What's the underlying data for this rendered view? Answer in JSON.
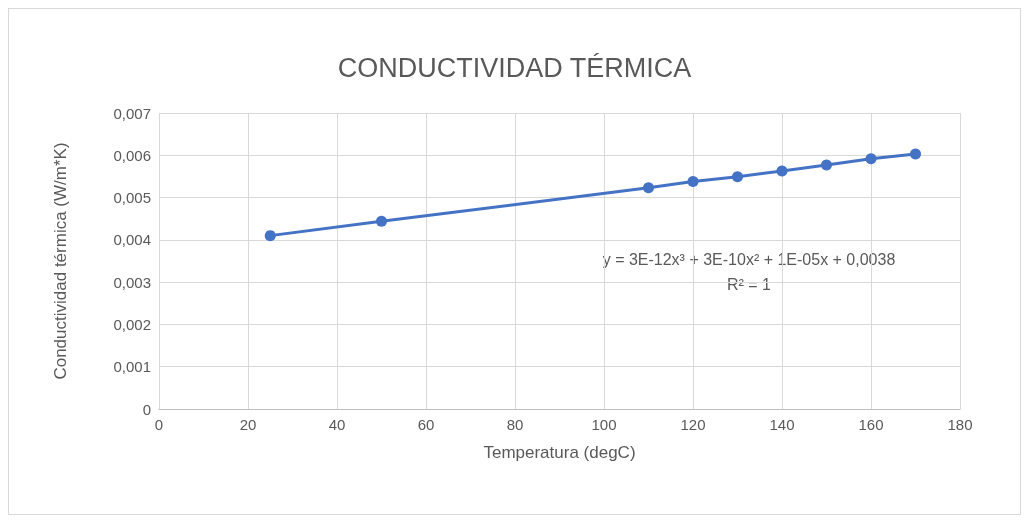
{
  "chart_data": {
    "type": "line",
    "title": "CONDUCTIVIDAD TÉRMICA",
    "xlabel": "Temperatura (degC)",
    "ylabel": "Conductividad térmica (W/m*K)",
    "x": [
      25,
      50,
      110,
      120,
      130,
      140,
      150,
      160,
      170
    ],
    "series": [
      {
        "color": "#4472c4",
        "values": [
          0.0041,
          0.00444,
          0.00523,
          0.00538,
          0.00549,
          0.00563,
          0.00577,
          0.00592,
          0.00603
        ]
      }
    ],
    "xlim": [
      0,
      180
    ],
    "xticks": [
      0,
      20,
      40,
      60,
      80,
      100,
      120,
      140,
      160,
      180
    ],
    "ylim": [
      0,
      0.007
    ],
    "yticks": [
      0,
      {
        "value": 0.001,
        "label": "0,001"
      },
      {
        "value": 0.002,
        "label": "0,002"
      },
      {
        "value": 0.003,
        "label": "0,003"
      },
      {
        "value": 0.004,
        "label": "0,004"
      },
      {
        "value": 0.005,
        "label": "0,005"
      },
      {
        "value": 0.006,
        "label": "0,006"
      },
      {
        "value": 0.007,
        "label": "0,007"
      }
    ],
    "grid": true,
    "marker": "circle",
    "line_style": "solid",
    "annotations": [
      "y = 3E-12x³ + 3E-10x² + 1E-05x + 0,0038",
      "R² = 1"
    ]
  }
}
